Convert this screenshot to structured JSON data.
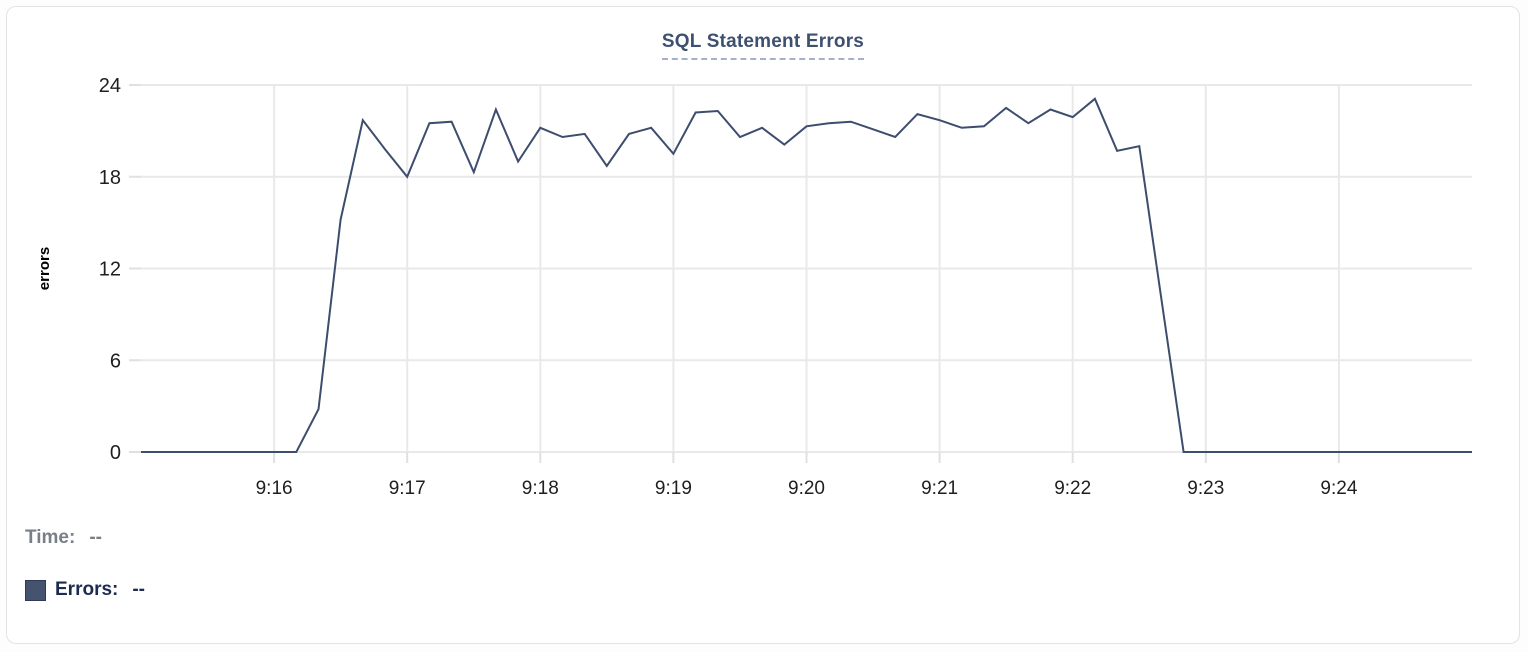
{
  "card": {
    "title": "SQL Statement Errors"
  },
  "tooltip_readout": {
    "time_label": "Time:",
    "time_value": "--",
    "errors_label": "Errors:",
    "errors_value": "--"
  },
  "colors": {
    "line": "#3d4d6e",
    "title": "#3e5070",
    "title_underline": "#a6b0c9",
    "grid": "#e9e9e9",
    "tick": "#e0e0e0",
    "axis_text": "#1f1f1f",
    "y_axis_label": "#000000",
    "readout_muted": "#7a7f87",
    "readout_strong": "#1e2b50",
    "swatch_fill": "#46536f",
    "swatch_border": "#2e3a57",
    "card_border": "#e3e3e3",
    "card_bg": "#ffffff"
  },
  "chart_data": {
    "type": "line",
    "title": "SQL Statement Errors",
    "xlabel": "",
    "ylabel": "errors",
    "ylim": [
      0,
      24
    ],
    "y_ticks": [
      0,
      6,
      12,
      18,
      24
    ],
    "x_tick_labels": [
      "9:16",
      "9:17",
      "9:18",
      "9:19",
      "9:20",
      "9:21",
      "9:22",
      "9:23",
      "9:24"
    ],
    "x_range": [
      "9:15:00",
      "9:25:00"
    ],
    "interval_seconds": 10,
    "grid": true,
    "legend_position": "below-left",
    "series": [
      {
        "name": "Errors",
        "color": "#3d4d6e",
        "points": [
          [
            "9:15:00",
            0
          ],
          [
            "9:15:10",
            0
          ],
          [
            "9:15:20",
            0
          ],
          [
            "9:15:30",
            0
          ],
          [
            "9:15:40",
            0
          ],
          [
            "9:15:50",
            0
          ],
          [
            "9:16:00",
            0
          ],
          [
            "9:16:10",
            0
          ],
          [
            "9:16:20",
            2.8
          ],
          [
            "9:16:30",
            15.2
          ],
          [
            "9:16:40",
            21.7
          ],
          [
            "9:16:50",
            19.8
          ],
          [
            "9:17:00",
            18.0
          ],
          [
            "9:17:10",
            21.5
          ],
          [
            "9:17:20",
            21.6
          ],
          [
            "9:17:30",
            18.3
          ],
          [
            "9:17:40",
            22.4
          ],
          [
            "9:17:50",
            19.0
          ],
          [
            "9:18:00",
            21.2
          ],
          [
            "9:18:10",
            20.6
          ],
          [
            "9:18:20",
            20.8
          ],
          [
            "9:18:30",
            18.7
          ],
          [
            "9:18:40",
            20.8
          ],
          [
            "9:18:50",
            21.2
          ],
          [
            "9:19:00",
            19.5
          ],
          [
            "9:19:10",
            22.2
          ],
          [
            "9:19:20",
            22.3
          ],
          [
            "9:19:30",
            20.6
          ],
          [
            "9:19:40",
            21.2
          ],
          [
            "9:19:50",
            20.1
          ],
          [
            "9:20:00",
            21.3
          ],
          [
            "9:20:10",
            21.5
          ],
          [
            "9:20:20",
            21.6
          ],
          [
            "9:20:30",
            21.1
          ],
          [
            "9:20:40",
            20.6
          ],
          [
            "9:20:50",
            22.1
          ],
          [
            "9:21:00",
            21.7
          ],
          [
            "9:21:10",
            21.2
          ],
          [
            "9:21:20",
            21.3
          ],
          [
            "9:21:30",
            22.5
          ],
          [
            "9:21:40",
            21.5
          ],
          [
            "9:21:50",
            22.4
          ],
          [
            "9:22:00",
            21.9
          ],
          [
            "9:22:10",
            23.1
          ],
          [
            "9:22:20",
            19.7
          ],
          [
            "9:22:30",
            20.0
          ],
          [
            "9:22:40",
            10.0
          ],
          [
            "9:22:50",
            0
          ],
          [
            "9:23:00",
            0
          ],
          [
            "9:23:10",
            0
          ],
          [
            "9:23:20",
            0
          ],
          [
            "9:23:30",
            0
          ],
          [
            "9:23:40",
            0
          ],
          [
            "9:23:50",
            0
          ],
          [
            "9:24:00",
            0
          ],
          [
            "9:24:10",
            0
          ],
          [
            "9:24:20",
            0
          ],
          [
            "9:24:30",
            0
          ],
          [
            "9:24:40",
            0
          ],
          [
            "9:24:50",
            0
          ],
          [
            "9:25:00",
            0
          ]
        ]
      }
    ]
  }
}
